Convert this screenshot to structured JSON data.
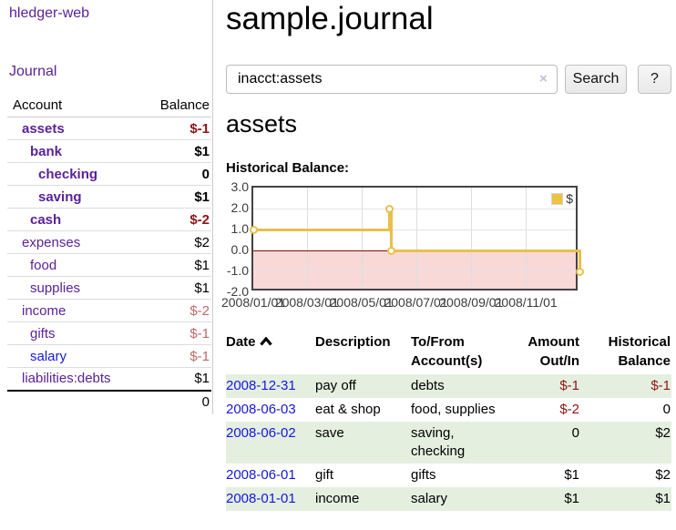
{
  "app": {
    "brand": "hledger-web"
  },
  "nav": {
    "journal_label": "Journal"
  },
  "sidebar": {
    "columns": {
      "account": "Account",
      "balance": "Balance"
    },
    "accounts": [
      {
        "name": "assets",
        "depth": 0,
        "balance": "$-1",
        "emph": true,
        "tone": "neg-strong",
        "link": "visited"
      },
      {
        "name": "bank",
        "depth": 1,
        "balance": "$1",
        "emph": true,
        "tone": "pos",
        "link": "visited"
      },
      {
        "name": "checking",
        "depth": 2,
        "balance": "0",
        "emph": true,
        "tone": "pos",
        "link": "visited"
      },
      {
        "name": "saving",
        "depth": 2,
        "balance": "$1",
        "emph": true,
        "tone": "pos",
        "link": "visited"
      },
      {
        "name": "cash",
        "depth": 1,
        "balance": "$-2",
        "emph": true,
        "tone": "neg-strong",
        "link": "visited"
      },
      {
        "name": "expenses",
        "depth": 0,
        "balance": "$2",
        "emph": false,
        "tone": "pos",
        "link": "visited"
      },
      {
        "name": "food",
        "depth": 1,
        "balance": "$1",
        "emph": false,
        "tone": "pos",
        "link": "visited"
      },
      {
        "name": "supplies",
        "depth": 1,
        "balance": "$1",
        "emph": false,
        "tone": "pos",
        "link": "visited"
      },
      {
        "name": "income",
        "depth": 0,
        "balance": "$-2",
        "emph": false,
        "tone": "neg-muted",
        "link": "visited"
      },
      {
        "name": "gifts",
        "depth": 1,
        "balance": "$-1",
        "emph": false,
        "tone": "neg-muted",
        "link": "visited"
      },
      {
        "name": "salary",
        "depth": 1,
        "balance": "$-1",
        "emph": false,
        "tone": "neg-muted",
        "link": "unvisited"
      },
      {
        "name": "liabilities:debts",
        "depth": 0,
        "balance": "$1",
        "emph": false,
        "tone": "pos",
        "link": "visited"
      }
    ],
    "total": "0"
  },
  "main": {
    "title": "sample.journal",
    "search": {
      "value": "inacct:assets",
      "clear_icon": "×",
      "button_label": "Search",
      "help_label": "?"
    },
    "account_heading": "assets",
    "chart_label": "Historical Balance:"
  },
  "chart_data": {
    "type": "line",
    "title": "Historical Balance:",
    "step": true,
    "series": [
      {
        "name": "$",
        "color": "#EDC240",
        "points": [
          [
            "2008-01-01",
            1
          ],
          [
            "2008-06-01",
            2
          ],
          [
            "2008-06-03",
            0
          ],
          [
            "2008-12-31",
            -1
          ]
        ]
      }
    ],
    "y_ticks": [
      3.0,
      2.0,
      1.0,
      0.0,
      -1.0,
      -2.0
    ],
    "y_tick_labels": [
      "3.0",
      "2.0",
      "1.0",
      "0.0",
      "-1.0",
      "-2.0"
    ],
    "x_ticks": [
      "2008-01-01",
      "2008-03-01",
      "2008-05-01",
      "2008-07-01",
      "2008-09-01",
      "2008-11-01"
    ],
    "x_tick_labels": [
      "2008/01/01",
      "2008/03/01",
      "2008/05/01",
      "2008/07/01",
      "2008/09/01",
      "2008/11/01"
    ],
    "ylim": [
      -2,
      3
    ],
    "xlim": [
      "2008-01-01",
      "2008-12-31"
    ],
    "grid": true,
    "legend_position": "top-right",
    "negative_region_color": "#f9d8d8",
    "zero_line_color": "#7d0f0f",
    "line_color": "#e9c04a"
  },
  "register": {
    "columns": [
      {
        "line1": "Date",
        "line2": ""
      },
      {
        "line1": "Description",
        "line2": ""
      },
      {
        "line1": "To/From",
        "line2": "Account(s)"
      },
      {
        "line1": "Amount",
        "line2": "Out/In"
      },
      {
        "line1": "Historical",
        "line2": "Balance"
      }
    ],
    "sort": {
      "column": "Date",
      "direction": "ascending"
    },
    "rows": [
      {
        "date": "2008-12-31",
        "description": "pay off",
        "accounts": "debts",
        "amount": "$-1",
        "amount_neg": true,
        "balance": "$-1",
        "balance_neg": true
      },
      {
        "date": "2008-06-03",
        "description": "eat & shop",
        "accounts": "food, supplies",
        "amount": "$-2",
        "amount_neg": true,
        "balance": "0",
        "balance_neg": false
      },
      {
        "date": "2008-06-02",
        "description": "save",
        "accounts": "saving, checking",
        "amount": "0",
        "amount_neg": false,
        "balance": "$2",
        "balance_neg": false
      },
      {
        "date": "2008-06-01",
        "description": "gift",
        "accounts": "gifts",
        "amount": "$1",
        "amount_neg": false,
        "balance": "$2",
        "balance_neg": false
      },
      {
        "date": "2008-01-01",
        "description": "income",
        "accounts": "salary",
        "amount": "$1",
        "amount_neg": false,
        "balance": "$1",
        "balance_neg": false
      }
    ]
  },
  "colors": {
    "link_visited": "#5a2296",
    "link_unvisited": "#1717dd",
    "negative_strong": "#8f1414",
    "negative_muted": "#c06868",
    "row_stripe_green": "#e4efe0",
    "chart_series_gold": "#EDC240",
    "chart_negative_pink": "#f9d8d8",
    "chart_zero_line": "#7d0f0f"
  }
}
